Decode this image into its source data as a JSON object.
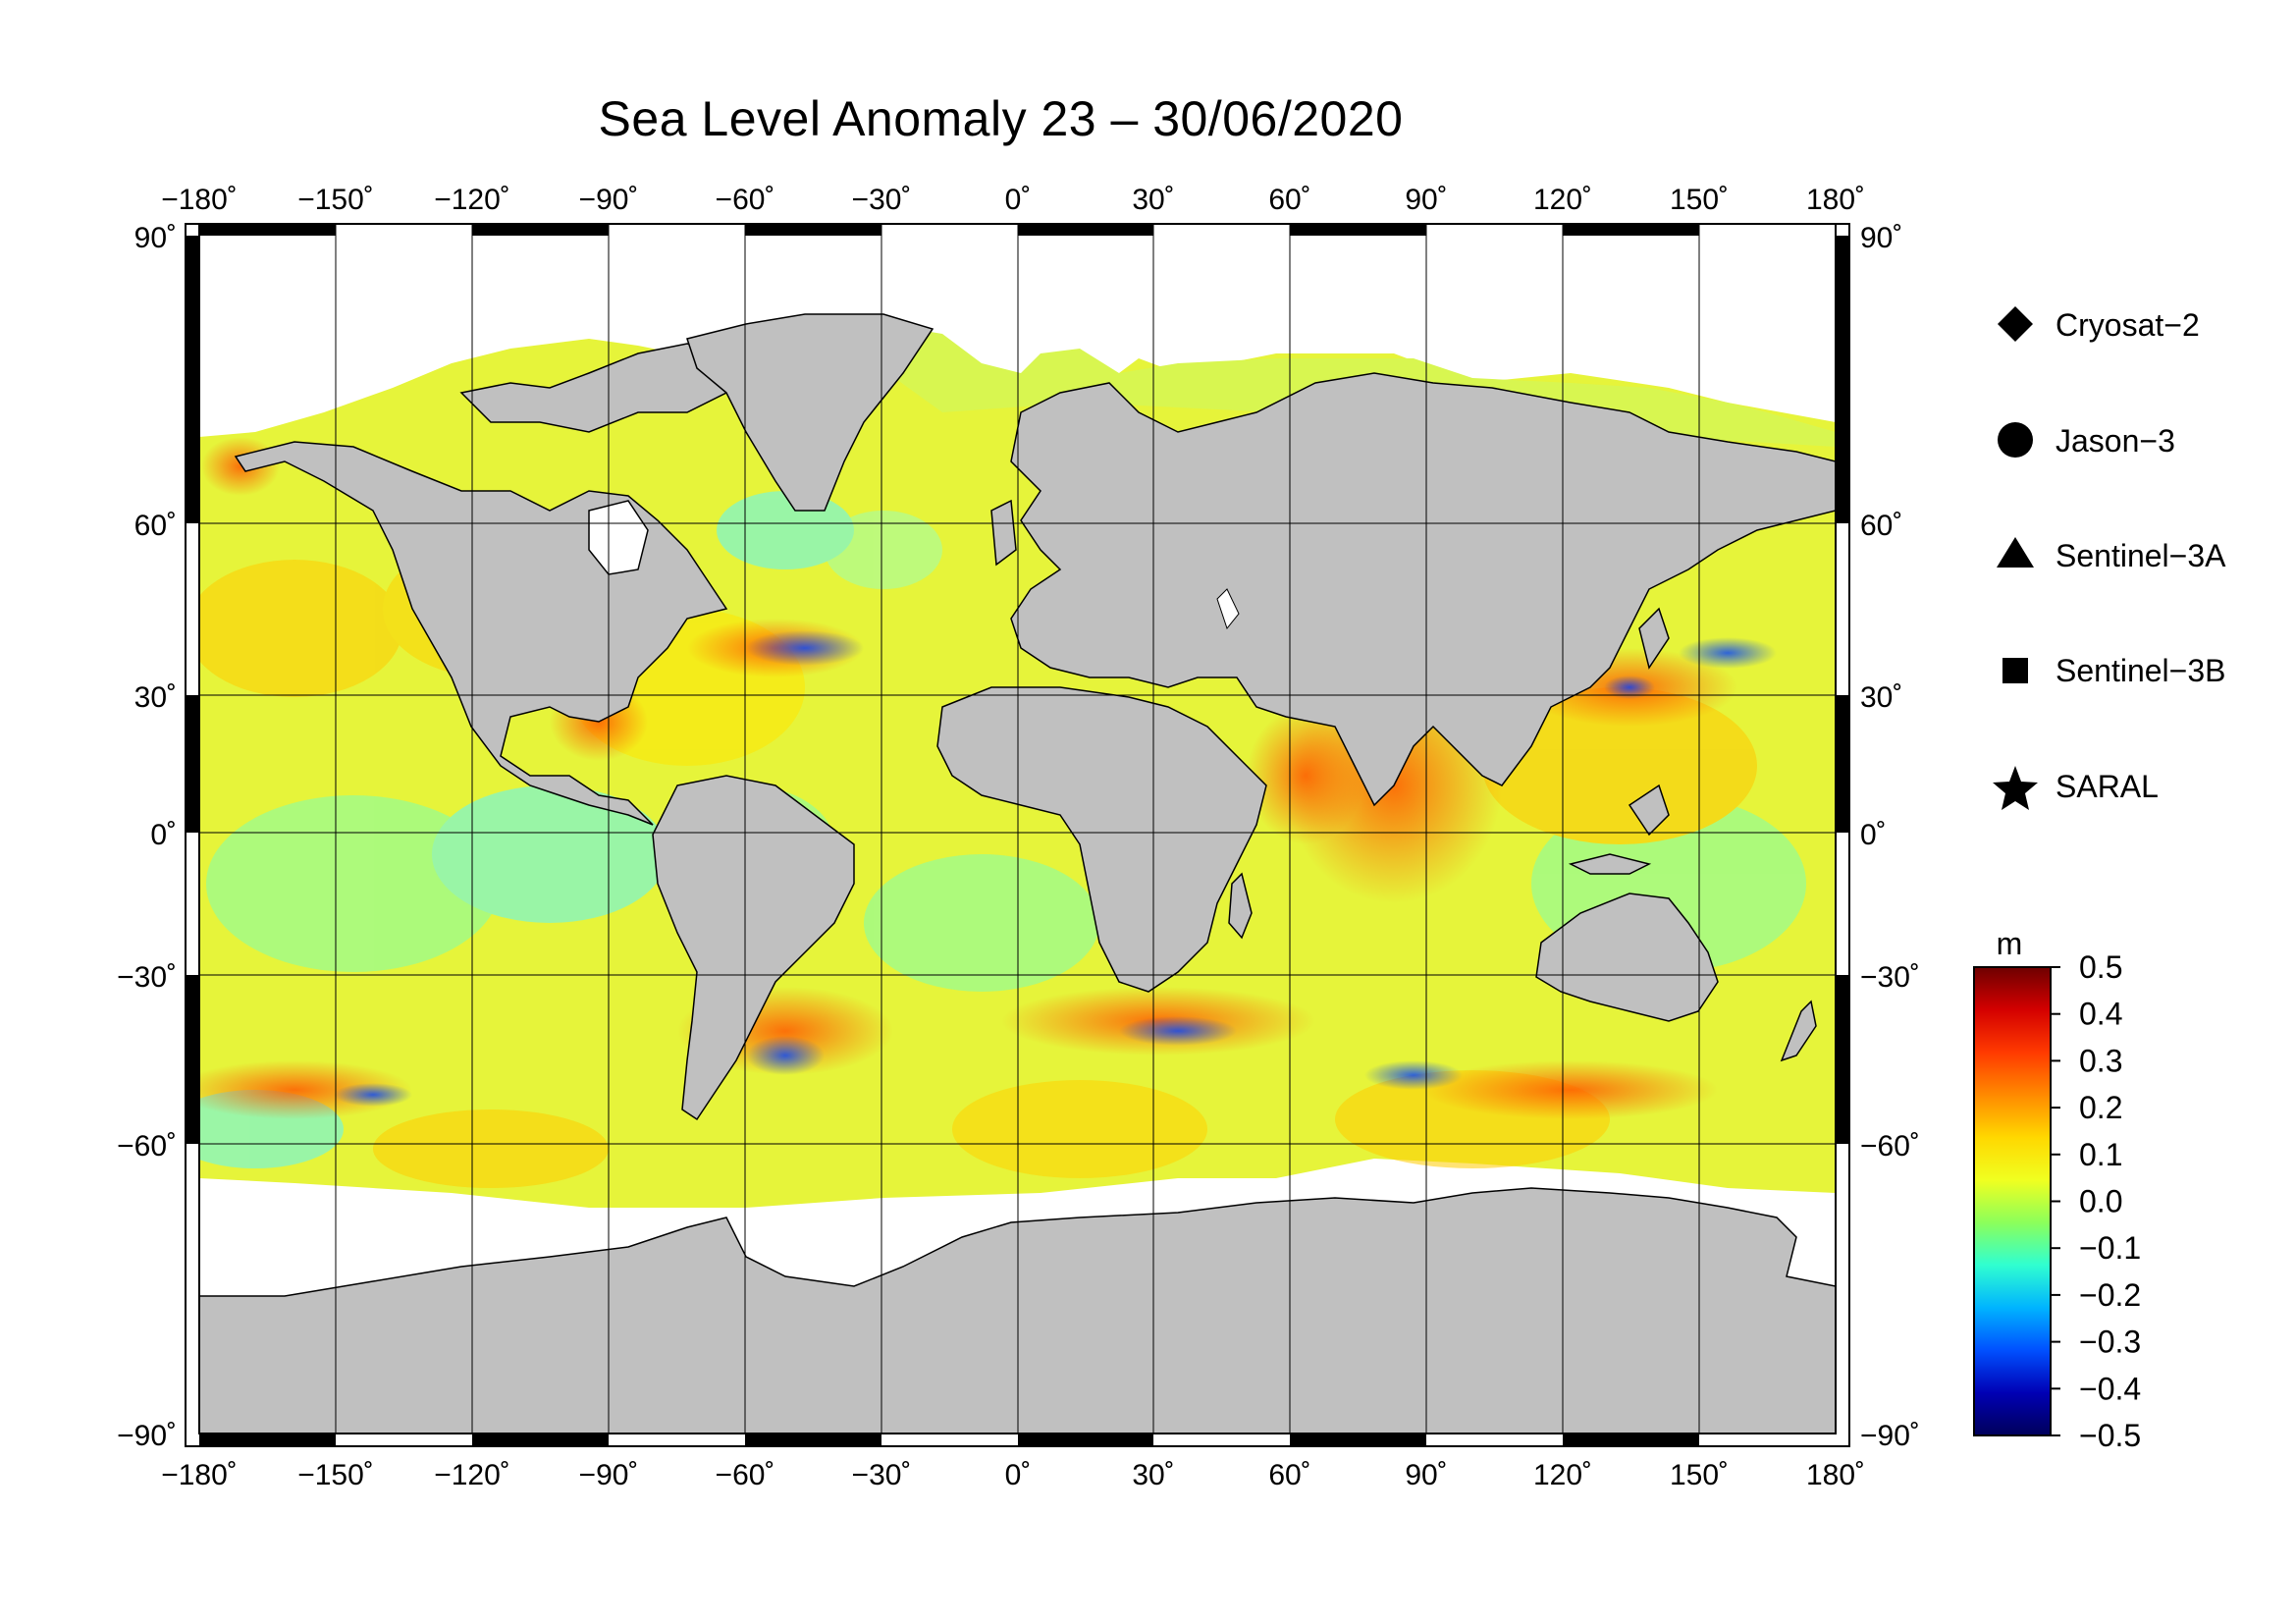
{
  "title": "Sea Level Anomaly 23 – 30/06/2020",
  "map": {
    "projection": "equirectangular",
    "lon_range": [
      -180,
      180
    ],
    "lat_range": [
      -90,
      90
    ],
    "lon_ticks": [
      "−180˚",
      "−150˚",
      "−120˚",
      "−90˚",
      "−60˚",
      "−30˚",
      "0˚",
      "30˚",
      "60˚",
      "90˚",
      "120˚",
      "150˚",
      "180˚"
    ],
    "lat_ticks": [
      "90˚",
      "60˚",
      "30˚",
      "0˚",
      "−30˚",
      "−60˚",
      "−90˚"
    ],
    "land_color": "#c0c0c0",
    "graticule": "on"
  },
  "legend": {
    "items": [
      {
        "label": "Cryosat−2",
        "icon": "diamond-icon"
      },
      {
        "label": "Jason−3",
        "icon": "circle-icon"
      },
      {
        "label": "Sentinel−3A",
        "icon": "triangle-icon"
      },
      {
        "label": "Sentinel−3B",
        "icon": "square-icon"
      },
      {
        "label": "SARAL",
        "icon": "star-icon"
      }
    ]
  },
  "colorbar": {
    "unit": "m",
    "ticks": [
      "0.5",
      "0.4",
      "0.3",
      "0.2",
      "0.1",
      "0.0",
      "−0.1",
      "−0.2",
      "−0.3",
      "−0.4",
      "−0.5"
    ],
    "range": [
      -0.5,
      0.5
    ],
    "colors": [
      "#6e0000",
      "#d40000",
      "#ff3a00",
      "#ff8a00",
      "#ffd800",
      "#f0ff20",
      "#8cff5a",
      "#30ffd0",
      "#00b4ff",
      "#0050ff",
      "#0000b4",
      "#00005a"
    ]
  }
}
